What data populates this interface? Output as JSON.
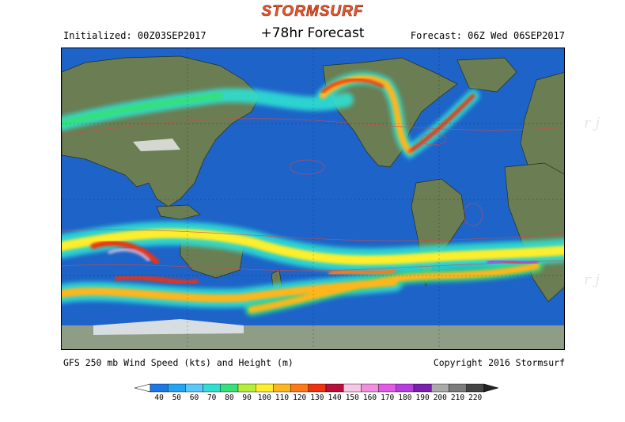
{
  "brand": {
    "logo_text": "STORMSURF"
  },
  "header": {
    "initialized": "Initialized: 00Z03SEP2017",
    "forecast_hour": "+78hr Forecast",
    "valid_time": "Forecast: 06Z Wed 06SEP2017"
  },
  "footer": {
    "product": "GFS 250 mb Wind Speed (kts) and Height (m)",
    "copyright": "Copyright 2016 Stormsurf"
  },
  "legend": {
    "labels": [
      "40",
      "50",
      "60",
      "70",
      "80",
      "90",
      "100",
      "110",
      "120",
      "130",
      "140",
      "150",
      "160",
      "170",
      "180",
      "190",
      "200",
      "210",
      "220"
    ],
    "colors": [
      "#1c78e6",
      "#23a5f5",
      "#5ac8fa",
      "#2ee0d2",
      "#36e07a",
      "#b4ee3a",
      "#ffee2a",
      "#ffb61e",
      "#ff7a16",
      "#f0320e",
      "#b8103a",
      "#f6c8e6",
      "#f28ede",
      "#e45ae6",
      "#b63ee0",
      "#7a1fae",
      "#aaaaaa",
      "#7c7c7c",
      "#444444"
    ]
  },
  "map": {
    "ocean_color": "#1e63c8",
    "land_color": "#6b7d52",
    "ice_color": "#d8dde2"
  }
}
